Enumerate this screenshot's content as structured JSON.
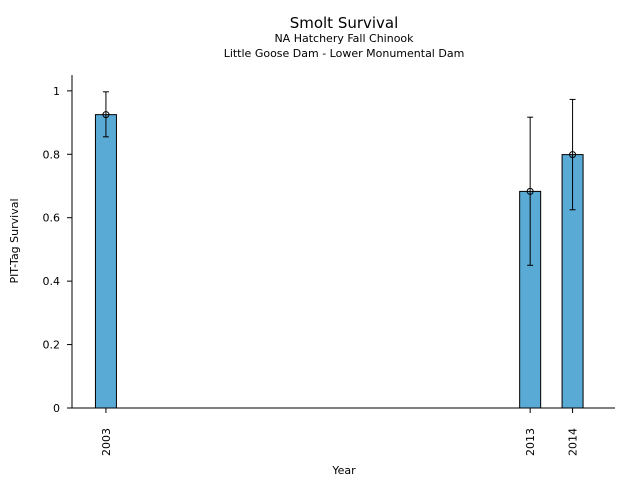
{
  "chart_data": {
    "type": "bar",
    "title": "Smolt Survival",
    "subtitles": [
      "NA Hatchery Fall Chinook",
      "Little Goose Dam - Lower Monumental Dam"
    ],
    "xlabel": "Year",
    "ylabel": "PIT-Tag Survival",
    "x": [
      2003,
      2013,
      2014
    ],
    "x_tick_labels": [
      "2003",
      "2013",
      "2014"
    ],
    "values": [
      0.925,
      0.683,
      0.799
    ],
    "error_low": [
      0.855,
      0.45,
      0.625
    ],
    "error_high": [
      0.997,
      0.917,
      0.973
    ],
    "ylim": [
      0,
      1.05
    ],
    "y_ticks": [
      0,
      0.2,
      0.4,
      0.6,
      0.8,
      1
    ],
    "y_tick_labels": [
      "0",
      "0.2",
      "0.4",
      "0.6",
      "0.8",
      "1"
    ],
    "xlim": [
      2002.2,
      2015
    ],
    "bar_color": "#5aaad6",
    "grid": false,
    "legend": "none"
  }
}
